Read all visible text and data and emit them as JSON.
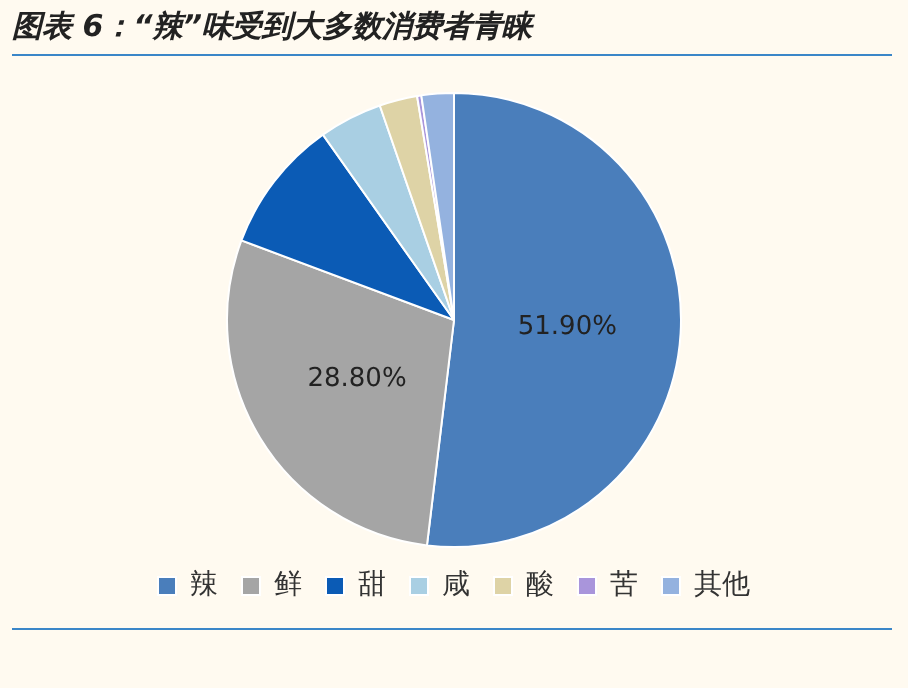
{
  "chart_data": {
    "type": "pie",
    "title": "图表 6：“辣”味受到大多数消费者青睐",
    "categories": [
      "辣",
      "鲜",
      "甜",
      "咸",
      "酸",
      "苦",
      "其他"
    ],
    "values": [
      51.9,
      28.8,
      9.5,
      4.5,
      2.7,
      0.3,
      2.3
    ],
    "colors": [
      "#4a7ebb",
      "#a5a5a5",
      "#0b5bb5",
      "#a9cfe3",
      "#ded3a6",
      "#a995db",
      "#94b2df"
    ],
    "value_labels": [
      "51.90%",
      "28.80%",
      null,
      null,
      null,
      null,
      null
    ],
    "legend": "bottom"
  }
}
